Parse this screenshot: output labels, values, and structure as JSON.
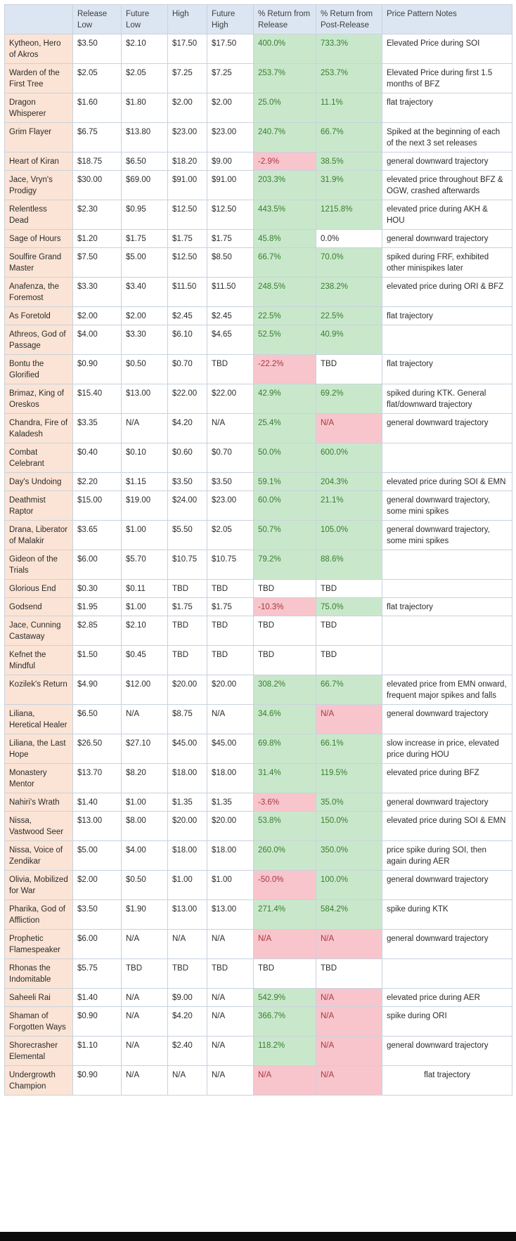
{
  "colors": {
    "header_bg": "#dce6f2",
    "header_text": "#3d3d3d",
    "name_bg": "#fbe4d5",
    "green_bg": "#c9e8cb",
    "green_text": "#377d2f",
    "red_bg": "#f8c5cc",
    "red_text": "#a93741",
    "border": "#c8d2de",
    "text": "#2b2b2b"
  },
  "table": {
    "columns": [
      {
        "key": "name",
        "label": ""
      },
      {
        "key": "release_low",
        "label": "Release Low"
      },
      {
        "key": "future_low",
        "label": "Future Low"
      },
      {
        "key": "high",
        "label": "High"
      },
      {
        "key": "future_high",
        "label": "Future High"
      },
      {
        "key": "return_release",
        "label": "% Return from Release"
      },
      {
        "key": "return_post",
        "label": "% Return from Post-Release"
      },
      {
        "key": "notes",
        "label": "Price Pattern Notes"
      }
    ],
    "rows": [
      {
        "name": "Kytheon, Hero of Akros",
        "release_low": "$3.50",
        "future_low": "$2.10",
        "high": "$17.50",
        "future_high": "$17.50",
        "return_release": "400.0%",
        "return_release_style": "green",
        "return_post": "733.3%",
        "return_post_style": "green",
        "notes": "Elevated Price during SOI"
      },
      {
        "name": "Warden of the First Tree",
        "release_low": "$2.05",
        "future_low": "$2.05",
        "high": "$7.25",
        "future_high": "$7.25",
        "return_release": "253.7%",
        "return_release_style": "green",
        "return_post": "253.7%",
        "return_post_style": "green",
        "notes": "Elevated Price during first 1.5 months of BFZ"
      },
      {
        "name": "Dragon Whisperer",
        "release_low": "$1.60",
        "future_low": "$1.80",
        "high": "$2.00",
        "future_high": "$2.00",
        "return_release": "25.0%",
        "return_release_style": "green",
        "return_post": "11.1%",
        "return_post_style": "green",
        "notes": "flat trajectory"
      },
      {
        "name": "Grim Flayer",
        "release_low": "$6.75",
        "future_low": "$13.80",
        "high": "$23.00",
        "future_high": "$23.00",
        "return_release": "240.7%",
        "return_release_style": "green",
        "return_post": "66.7%",
        "return_post_style": "green",
        "notes": "Spiked at the beginning of each of the next 3 set releases"
      },
      {
        "name": "Heart of Kiran",
        "release_low": "$18.75",
        "future_low": "$6.50",
        "high": "$18.20",
        "future_high": "$9.00",
        "return_release": "-2.9%",
        "return_release_style": "red",
        "return_post": "38.5%",
        "return_post_style": "green",
        "notes": "general downward trajectory"
      },
      {
        "name": "Jace, Vryn's Prodigy",
        "release_low": "$30.00",
        "future_low": "$69.00",
        "high": "$91.00",
        "future_high": "$91.00",
        "return_release": "203.3%",
        "return_release_style": "green",
        "return_post": "31.9%",
        "return_post_style": "green",
        "notes": "elevated price throughout BFZ & OGW, crashed afterwards"
      },
      {
        "name": "Relentless Dead",
        "release_low": "$2.30",
        "future_low": "$0.95",
        "high": "$12.50",
        "future_high": "$12.50",
        "return_release": "443.5%",
        "return_release_style": "green",
        "return_post": "1215.8%",
        "return_post_style": "green",
        "notes": "elevated price during AKH & HOU"
      },
      {
        "name": "Sage of Hours",
        "release_low": "$1.20",
        "future_low": "$1.75",
        "high": "$1.75",
        "future_high": "$1.75",
        "return_release": "45.8%",
        "return_release_style": "green",
        "return_post": "0.0%",
        "return_post_style": "",
        "notes": "general downward trajectory"
      },
      {
        "name": "Soulfire Grand Master",
        "release_low": "$7.50",
        "future_low": "$5.00",
        "high": "$12.50",
        "future_high": "$8.50",
        "return_release": "66.7%",
        "return_release_style": "green",
        "return_post": "70.0%",
        "return_post_style": "green",
        "notes": "spiked during FRF, exhibited other minispikes later"
      },
      {
        "name": "Anafenza, the Foremost",
        "release_low": "$3.30",
        "future_low": "$3.40",
        "high": "$11.50",
        "future_high": "$11.50",
        "return_release": "248.5%",
        "return_release_style": "green",
        "return_post": "238.2%",
        "return_post_style": "green",
        "notes": "elevated price during ORI & BFZ"
      },
      {
        "name": "As Foretold",
        "release_low": "$2.00",
        "future_low": "$2.00",
        "high": "$2.45",
        "future_high": "$2.45",
        "return_release": "22.5%",
        "return_release_style": "green",
        "return_post": "22.5%",
        "return_post_style": "green",
        "notes": "flat trajectory"
      },
      {
        "name": "Athreos, God of Passage",
        "release_low": "$4.00",
        "future_low": "$3.30",
        "high": "$6.10",
        "future_high": "$4.65",
        "return_release": "52.5%",
        "return_release_style": "green",
        "return_post": "40.9%",
        "return_post_style": "green",
        "notes": ""
      },
      {
        "name": "Bontu the Glorified",
        "release_low": "$0.90",
        "future_low": "$0.50",
        "high": "$0.70",
        "future_high": "TBD",
        "return_release": "-22.2%",
        "return_release_style": "red",
        "return_post": "TBD",
        "return_post_style": "",
        "notes": "flat trajectory"
      },
      {
        "name": "Brimaz, King of Oreskos",
        "release_low": "$15.40",
        "future_low": "$13.00",
        "high": "$22.00",
        "future_high": "$22.00",
        "return_release": "42.9%",
        "return_release_style": "green",
        "return_post": "69.2%",
        "return_post_style": "green",
        "notes": "spiked during KTK. General flat/downward trajectory"
      },
      {
        "name": "Chandra, Fire of Kaladesh",
        "release_low": "$3.35",
        "future_low": "N/A",
        "high": "$4.20",
        "future_high": "N/A",
        "return_release": "25.4%",
        "return_release_style": "green",
        "return_post": "N/A",
        "return_post_style": "red",
        "notes": "general downward trajectory"
      },
      {
        "name": "Combat Celebrant",
        "release_low": "$0.40",
        "future_low": "$0.10",
        "high": "$0.60",
        "future_high": "$0.70",
        "return_release": "50.0%",
        "return_release_style": "green",
        "return_post": "600.0%",
        "return_post_style": "green",
        "notes": ""
      },
      {
        "name": "Day's Undoing",
        "release_low": "$2.20",
        "future_low": "$1.15",
        "high": "$3.50",
        "future_high": "$3.50",
        "return_release": "59.1%",
        "return_release_style": "green",
        "return_post": "204.3%",
        "return_post_style": "green",
        "notes": "elevated price during SOI & EMN"
      },
      {
        "name": "Deathmist Raptor",
        "release_low": "$15.00",
        "future_low": "$19.00",
        "high": "$24.00",
        "future_high": "$23.00",
        "return_release": "60.0%",
        "return_release_style": "green",
        "return_post": "21.1%",
        "return_post_style": "green",
        "notes": "general downward trajectory, some mini spikes"
      },
      {
        "name": "Drana, Liberator of Malakir",
        "release_low": "$3.65",
        "future_low": "$1.00",
        "high": "$5.50",
        "future_high": "$2.05",
        "return_release": "50.7%",
        "return_release_style": "green",
        "return_post": "105.0%",
        "return_post_style": "green",
        "notes": "general downward trajectory, some mini spikes"
      },
      {
        "name": "Gideon of the Trials",
        "release_low": "$6.00",
        "future_low": "$5.70",
        "high": "$10.75",
        "future_high": "$10.75",
        "return_release": "79.2%",
        "return_release_style": "green",
        "return_post": "88.6%",
        "return_post_style": "green",
        "notes": ""
      },
      {
        "name": "Glorious End",
        "release_low": "$0.30",
        "future_low": "$0.11",
        "high": "TBD",
        "future_high": "TBD",
        "return_release": "TBD",
        "return_release_style": "",
        "return_post": "TBD",
        "return_post_style": "",
        "notes": ""
      },
      {
        "name": "Godsend",
        "release_low": "$1.95",
        "future_low": "$1.00",
        "high": "$1.75",
        "future_high": "$1.75",
        "return_release": "-10.3%",
        "return_release_style": "red",
        "return_post": "75.0%",
        "return_post_style": "green",
        "notes": "flat trajectory"
      },
      {
        "name": "Jace, Cunning Castaway",
        "release_low": "$2.85",
        "future_low": "$2.10",
        "high": "TBD",
        "future_high": "TBD",
        "return_release": "TBD",
        "return_release_style": "",
        "return_post": "TBD",
        "return_post_style": "",
        "notes": ""
      },
      {
        "name": "Kefnet the Mindful",
        "release_low": "$1.50",
        "future_low": "$0.45",
        "high": "TBD",
        "future_high": "TBD",
        "return_release": "TBD",
        "return_release_style": "",
        "return_post": "TBD",
        "return_post_style": "",
        "notes": ""
      },
      {
        "name": "Kozilek's Return",
        "release_low": "$4.90",
        "future_low": "$12.00",
        "high": "$20.00",
        "future_high": "$20.00",
        "return_release": "308.2%",
        "return_release_style": "green",
        "return_post": "66.7%",
        "return_post_style": "green",
        "notes": "elevated price from EMN onward, frequent major spikes and falls"
      },
      {
        "name": "Liliana, Heretical Healer",
        "release_low": "$6.50",
        "future_low": "N/A",
        "high": "$8.75",
        "future_high": "N/A",
        "return_release": "34.6%",
        "return_release_style": "green",
        "return_post": "N/A",
        "return_post_style": "red",
        "notes": "general downward trajectory"
      },
      {
        "name": "Liliana, the Last Hope",
        "release_low": "$26.50",
        "future_low": "$27.10",
        "high": "$45.00",
        "future_high": "$45.00",
        "return_release": "69.8%",
        "return_release_style": "green",
        "return_post": "66.1%",
        "return_post_style": "green",
        "notes": "slow increase in price, elevated price during HOU"
      },
      {
        "name": "Monastery Mentor",
        "release_low": "$13.70",
        "future_low": "$8.20",
        "high": "$18.00",
        "future_high": "$18.00",
        "return_release": "31.4%",
        "return_release_style": "green",
        "return_post": "119.5%",
        "return_post_style": "green",
        "notes": "elevated price during BFZ"
      },
      {
        "name": "Nahiri's Wrath",
        "release_low": "$1.40",
        "future_low": "$1.00",
        "high": "$1.35",
        "future_high": "$1.35",
        "return_release": "-3.6%",
        "return_release_style": "red",
        "return_post": "35.0%",
        "return_post_style": "green",
        "notes": "general downward trajectory"
      },
      {
        "name": "Nissa, Vastwood Seer",
        "release_low": "$13.00",
        "future_low": "$8.00",
        "high": "$20.00",
        "future_high": "$20.00",
        "return_release": "53.8%",
        "return_release_style": "green",
        "return_post": "150.0%",
        "return_post_style": "green",
        "notes": "elevated price during SOI & EMN"
      },
      {
        "name": "Nissa, Voice of Zendikar",
        "release_low": "$5.00",
        "future_low": "$4.00",
        "high": "$18.00",
        "future_high": "$18.00",
        "return_release": "260.0%",
        "return_release_style": "green",
        "return_post": "350.0%",
        "return_post_style": "green",
        "notes": "price spike during SOI, then again during AER"
      },
      {
        "name": "Olivia, Mobilized for War",
        "release_low": "$2.00",
        "future_low": "$0.50",
        "high": "$1.00",
        "future_high": "$1.00",
        "return_release": "-50.0%",
        "return_release_style": "red",
        "return_post": "100.0%",
        "return_post_style": "green",
        "notes": "general downward trajectory"
      },
      {
        "name": "Pharika, God of Affliction",
        "release_low": "$3.50",
        "future_low": "$1.90",
        "high": "$13.00",
        "future_high": "$13.00",
        "return_release": "271.4%",
        "return_release_style": "green",
        "return_post": "584.2%",
        "return_post_style": "green",
        "notes": "spike during KTK"
      },
      {
        "name": "Prophetic Flamespeaker",
        "release_low": "$6.00",
        "future_low": "N/A",
        "high": "N/A",
        "future_high": "N/A",
        "return_release": "N/A",
        "return_release_style": "red",
        "return_post": "N/A",
        "return_post_style": "red",
        "notes": "general downward trajectory"
      },
      {
        "name": "Rhonas the Indomitable",
        "release_low": "$5.75",
        "future_low": "TBD",
        "high": "TBD",
        "future_high": "TBD",
        "return_release": "TBD",
        "return_release_style": "",
        "return_post": "TBD",
        "return_post_style": "",
        "notes": ""
      },
      {
        "name": "Saheeli Rai",
        "release_low": "$1.40",
        "future_low": "N/A",
        "high": "$9.00",
        "future_high": "N/A",
        "return_release": "542.9%",
        "return_release_style": "green",
        "return_post": "N/A",
        "return_post_style": "red",
        "notes": "elevated price during AER"
      },
      {
        "name": "Shaman of Forgotten Ways",
        "release_low": "$0.90",
        "future_low": "N/A",
        "high": "$4.20",
        "future_high": "N/A",
        "return_release": "366.7%",
        "return_release_style": "green",
        "return_post": "N/A",
        "return_post_style": "red",
        "notes": "spike during ORI"
      },
      {
        "name": "Shorecrasher Elemental",
        "release_low": "$1.10",
        "future_low": "N/A",
        "high": "$2.40",
        "future_high": "N/A",
        "return_release": "118.2%",
        "return_release_style": "green",
        "return_post": "N/A",
        "return_post_style": "red",
        "notes": "general downward trajectory"
      },
      {
        "name": "Undergrowth Champion",
        "release_low": "$0.90",
        "future_low": "N/A",
        "high": "N/A",
        "future_high": "N/A",
        "return_release": "N/A",
        "return_release_style": "red",
        "return_post": "N/A",
        "return_post_style": "red",
        "notes": "flat trajectory",
        "notes_align": "center"
      }
    ]
  }
}
